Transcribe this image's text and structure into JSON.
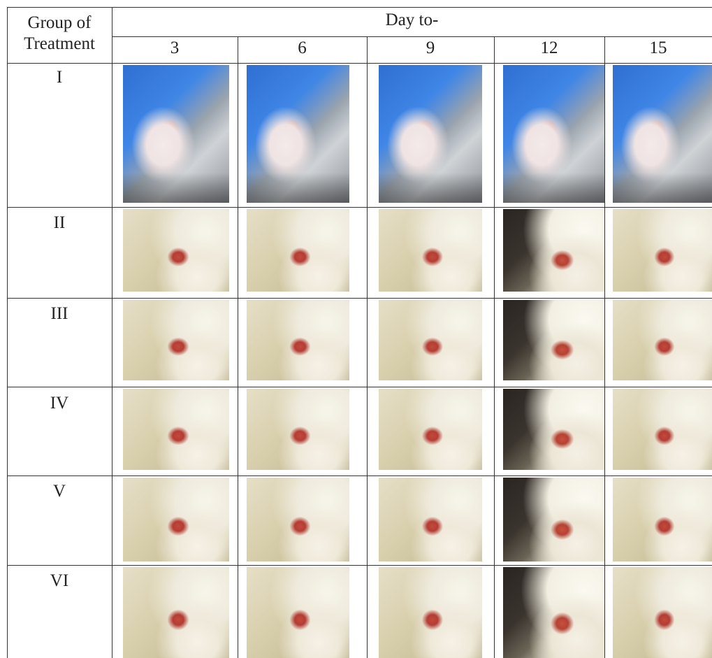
{
  "table": {
    "header": {
      "group_label": "Group of\nTreatment",
      "day_label": "Day to-",
      "days": [
        "3",
        "6",
        "9",
        "12",
        "15"
      ]
    },
    "groups": [
      "I",
      "II",
      "III",
      "IV",
      "V",
      "VI"
    ],
    "photo_styles": [
      [
        "blue",
        "blue",
        "blue",
        "blue",
        "blue"
      ],
      [
        "cream",
        "cream",
        "cream",
        "dark",
        "cream"
      ],
      [
        "cream",
        "cream",
        "cream",
        "dark",
        "cream"
      ],
      [
        "cream",
        "cream",
        "cream",
        "dark",
        "cream"
      ],
      [
        "cream",
        "cream",
        "cream",
        "dark",
        "cream"
      ],
      [
        "cream",
        "cream",
        "cream",
        "dark",
        "cream"
      ]
    ]
  }
}
